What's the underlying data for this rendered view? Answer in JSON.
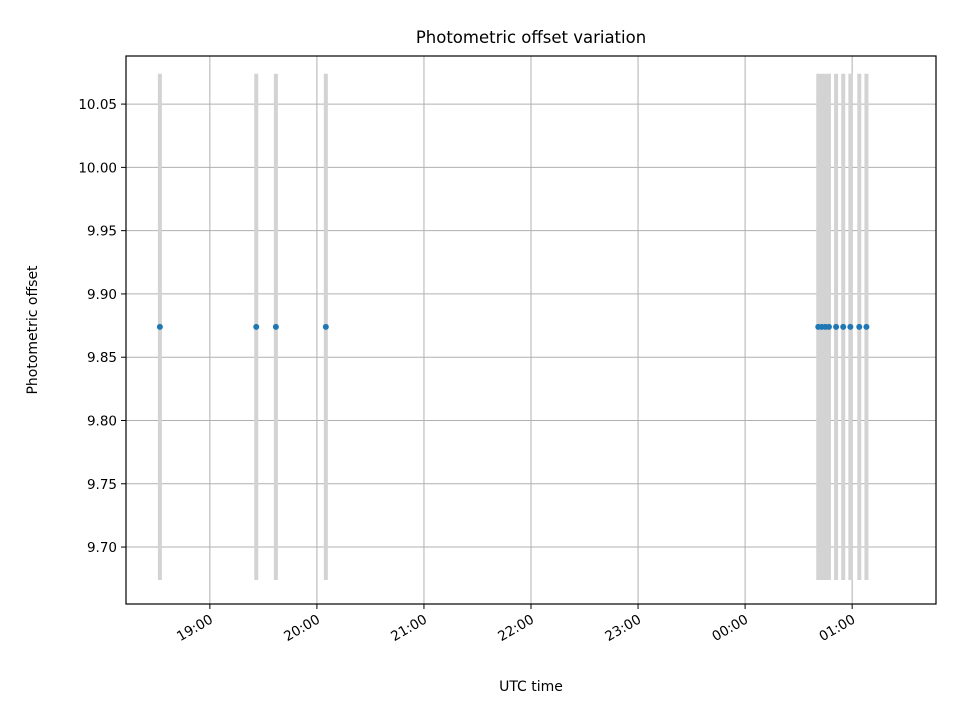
{
  "chart_data": {
    "type": "scatter",
    "title": "Photometric offset variation",
    "xlabel": "UTC time",
    "ylabel": "Photometric offset",
    "x_tick_labels": [
      "19:00",
      "20:00",
      "21:00",
      "22:00",
      "23:00",
      "00:00",
      "01:00"
    ],
    "y_tick_labels": [
      "9.70",
      "9.75",
      "9.80",
      "9.85",
      "9.90",
      "9.95",
      "10.00",
      "10.05"
    ],
    "y_ticks": [
      9.7,
      9.75,
      9.8,
      9.85,
      9.9,
      9.95,
      10.0,
      10.05
    ],
    "ylim": [
      9.655,
      10.088
    ],
    "xlim": [
      "18:13",
      "01:47"
    ],
    "grid": true,
    "x": [
      "18:32",
      "19:26",
      "19:37",
      "20:05",
      "00:41",
      "00:43",
      "00:45",
      "00:47",
      "00:51",
      "00:55",
      "00:59",
      "01:04",
      "01:08"
    ],
    "y": [
      9.874,
      9.874,
      9.874,
      9.874,
      9.874,
      9.874,
      9.874,
      9.874,
      9.874,
      9.874,
      9.874,
      9.874,
      9.874
    ],
    "error_range": [
      9.674,
      10.074
    ],
    "colors": {
      "points": "#1f77b4",
      "error_bars": "#d3d3d3",
      "grid": "#b0b0b0",
      "axes": "#000000"
    }
  }
}
